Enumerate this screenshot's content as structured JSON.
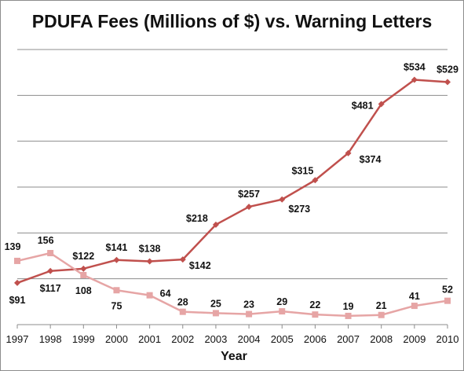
{
  "chart_data": {
    "type": "line",
    "title": "PDUFA Fees (Millions of $) vs. Warning Letters",
    "xlabel": "Year",
    "ylabel": "",
    "x": [
      "1997",
      "1998",
      "1999",
      "2000",
      "2001",
      "2002",
      "2003",
      "2004",
      "2005",
      "2006",
      "2007",
      "2008",
      "2009",
      "2010"
    ],
    "ylim": [
      0,
      600
    ],
    "grid": true,
    "legend": "none",
    "series": [
      {
        "color": "#c0504d",
        "marker": "diamond",
        "values": [
          91,
          117,
          122,
          141,
          138,
          142,
          218,
          257,
          273,
          315,
          374,
          481,
          534,
          529
        ],
        "labels": [
          "$91",
          "$117",
          "$122",
          "$141",
          "$138",
          "$142",
          "$218",
          "$257",
          "$273",
          "$315",
          "$374",
          "$481",
          "$534",
          "$529"
        ]
      },
      {
        "color": "#e6a5a5",
        "marker": "square",
        "values": [
          139,
          156,
          108,
          75,
          64,
          28,
          25,
          23,
          29,
          22,
          19,
          21,
          41,
          52
        ],
        "labels": [
          "139",
          "156",
          "108",
          "75",
          "64",
          "28",
          "25",
          "23",
          "29",
          "22",
          "19",
          "21",
          "41",
          "52"
        ]
      }
    ]
  }
}
